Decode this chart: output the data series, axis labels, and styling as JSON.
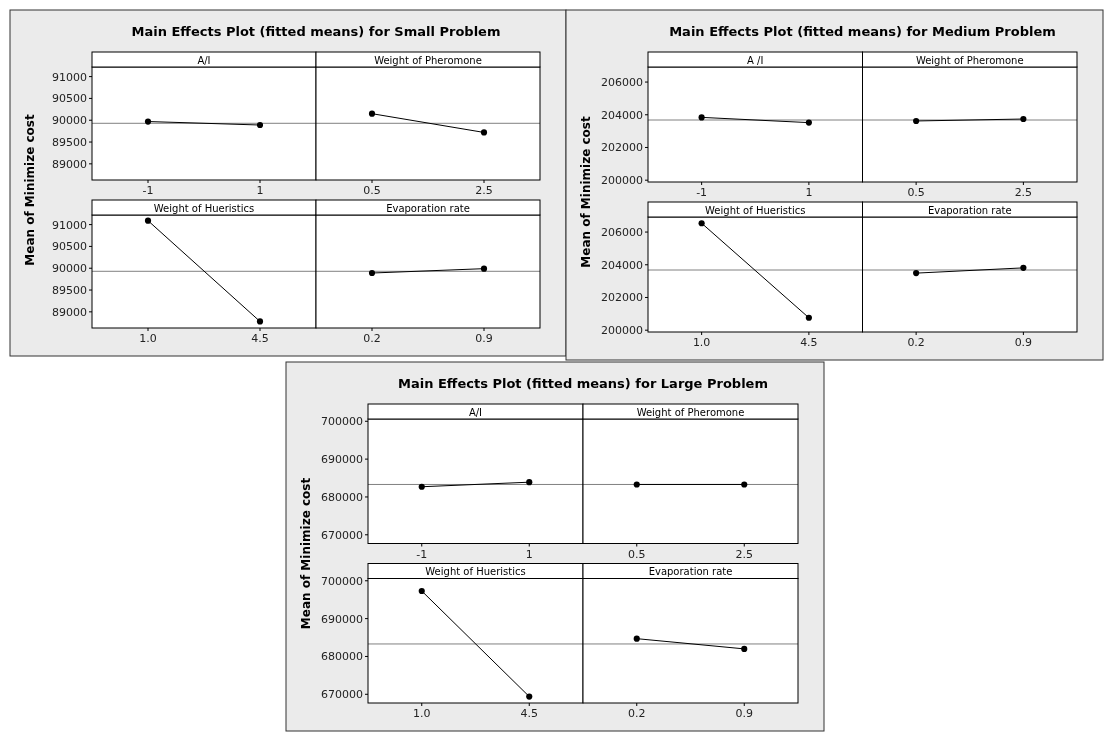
{
  "chart_data": [
    {
      "type": "line",
      "title": "Main Effects Plot (fitted means) for Small Problem",
      "ylabel": "Mean of Minimize cost",
      "subtitle": "A/I",
      "categories": [
        "-1",
        "1"
      ],
      "values": [
        89970,
        89890
      ],
      "color": "#000000",
      "marker": "circle",
      "line_style": "solid",
      "ylim": [
        88630,
        91220
      ],
      "yticks": [
        89000,
        89500,
        90000,
        90500,
        91000
      ],
      "ref_lines": [
        {
          "axis": "y",
          "value": 89930,
          "color": "#808080"
        }
      ]
    },
    {
      "type": "line",
      "subtitle": "Weight of Pheromone",
      "categories": [
        "0.5",
        "2.5"
      ],
      "values": [
        90150,
        89720
      ],
      "color": "#000000",
      "marker": "circle",
      "line_style": "solid",
      "ylim": [
        88630,
        91220
      ],
      "tick_labels": "x",
      "ref_lines": [
        {
          "axis": "y",
          "value": 89930,
          "color": "#808080"
        }
      ]
    },
    {
      "type": "line",
      "subtitle": "Weight of Hueristics",
      "categories": [
        "1.0",
        "4.5"
      ],
      "values": [
        91090,
        88780
      ],
      "color": "#000000",
      "marker": "circle",
      "line_style": "solid",
      "ylim": [
        88630,
        91220
      ],
      "yticks": [
        89000,
        89500,
        90000,
        90500,
        91000
      ],
      "ref_lines": [
        {
          "axis": "y",
          "value": 89930,
          "color": "#808080"
        }
      ]
    },
    {
      "type": "line",
      "subtitle": "Evaporation rate",
      "categories": [
        "0.2",
        "0.9"
      ],
      "values": [
        89890,
        89990
      ],
      "color": "#000000",
      "marker": "circle",
      "line_style": "solid",
      "ylim": [
        88630,
        91220
      ],
      "tick_labels": "x",
      "ref_lines": [
        {
          "axis": "y",
          "value": 89930,
          "color": "#808080"
        }
      ]
    },
    {
      "type": "line",
      "title": "Main Effects Plot (fitted means) for Medium Problem",
      "ylabel": "Mean of Minimize cost",
      "subtitle": "A /I",
      "categories": [
        "-1",
        "1"
      ],
      "values": [
        203840,
        203520
      ],
      "color": "#000000",
      "marker": "circle",
      "line_style": "solid",
      "ylim": [
        199890,
        206920
      ],
      "yticks": [
        200000,
        202000,
        204000,
        206000
      ],
      "ref_lines": [
        {
          "axis": "y",
          "value": 203680,
          "color": "#808080"
        }
      ]
    },
    {
      "type": "line",
      "subtitle": "Weight of Pheromone",
      "categories": [
        "0.5",
        "2.5"
      ],
      "values": [
        203620,
        203740
      ],
      "color": "#000000",
      "marker": "circle",
      "line_style": "solid",
      "ylim": [
        199890,
        206920
      ],
      "tick_labels": "x",
      "ref_lines": [
        {
          "axis": "y",
          "value": 203680,
          "color": "#808080"
        }
      ]
    },
    {
      "type": "line",
      "subtitle": "Weight of Hueristics",
      "categories": [
        "1.0",
        "4.5"
      ],
      "values": [
        206540,
        200760
      ],
      "color": "#000000",
      "marker": "circle",
      "line_style": "solid",
      "ylim": [
        199890,
        206920
      ],
      "yticks": [
        200000,
        202000,
        204000,
        206000
      ],
      "ref_lines": [
        {
          "axis": "y",
          "value": 203680,
          "color": "#808080"
        }
      ]
    },
    {
      "type": "line",
      "subtitle": "Evaporation rate",
      "categories": [
        "0.2",
        "0.9"
      ],
      "values": [
        203490,
        203810
      ],
      "color": "#000000",
      "marker": "circle",
      "line_style": "solid",
      "ylim": [
        199890,
        206920
      ],
      "tick_labels": "x",
      "ref_lines": [
        {
          "axis": "y",
          "value": 203680,
          "color": "#808080"
        }
      ]
    },
    {
      "type": "line",
      "title": "Main Effects Plot (fitted means) for Large Problem",
      "ylabel": "Mean of Minimize cost",
      "subtitle": "A/I",
      "categories": [
        "-1",
        "1"
      ],
      "values": [
        682700,
        683900
      ],
      "color": "#000000",
      "marker": "circle",
      "line_style": "solid",
      "ylim": [
        667700,
        700600
      ],
      "yticks": [
        670000,
        680000,
        690000,
        700000
      ],
      "ref_lines": [
        {
          "axis": "y",
          "value": 683300,
          "color": "#808080"
        }
      ]
    },
    {
      "type": "line",
      "subtitle": "Weight of Pheromone",
      "categories": [
        "0.5",
        "2.5"
      ],
      "values": [
        683300,
        683300
      ],
      "color": "#000000",
      "marker": "circle",
      "line_style": "solid",
      "ylim": [
        667700,
        700600
      ],
      "tick_labels": "x",
      "ref_lines": [
        {
          "axis": "y",
          "value": 683300,
          "color": "#808080"
        }
      ]
    },
    {
      "type": "line",
      "subtitle": "Weight of Hueristics",
      "categories": [
        "1.0",
        "4.5"
      ],
      "values": [
        697300,
        669400
      ],
      "color": "#000000",
      "marker": "circle",
      "line_style": "solid",
      "ylim": [
        667700,
        700600
      ],
      "yticks": [
        670000,
        680000,
        690000,
        700000
      ],
      "ref_lines": [
        {
          "axis": "y",
          "value": 683300,
          "color": "#808080"
        }
      ]
    },
    {
      "type": "line",
      "subtitle": "Evaporation rate",
      "categories": [
        "0.2",
        "0.9"
      ],
      "values": [
        684700,
        682000
      ],
      "color": "#000000",
      "marker": "circle",
      "line_style": "solid",
      "ylim": [
        667700,
        700600
      ],
      "tick_labels": "x",
      "ref_lines": [
        {
          "axis": "y",
          "value": 683300,
          "color": "#808080"
        }
      ]
    }
  ]
}
